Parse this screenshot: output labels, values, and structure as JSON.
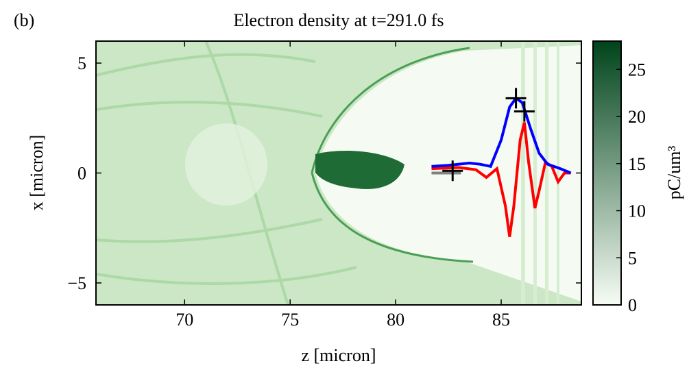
{
  "chart_data": {
    "type": "line",
    "title": "Electron density at t=291.0 fs",
    "panel_label": "(b)",
    "xlabel": "z [micron]",
    "ylabel": "x [micron]",
    "colorbar_label": "pC/um³",
    "xlim": [
      65.8,
      88.8
    ],
    "ylim": [
      -6,
      6
    ],
    "xticks": [
      70,
      75,
      80,
      85
    ],
    "yticks": [
      {
        "value": -5,
        "label": "−5"
      },
      0,
      5
    ],
    "clim": [
      0,
      28
    ],
    "cticks": [
      0,
      5,
      10,
      15,
      20,
      25
    ],
    "colormap": [
      "#f7fcf5",
      "#00441b"
    ],
    "series": [
      {
        "color": "#808080",
        "x": [
          81.7,
          83.1
        ],
        "values": [
          0.0,
          0.0
        ]
      },
      {
        "color": "#ff0000",
        "x": [
          81.7,
          83.0,
          83.8,
          84.3,
          84.8,
          85.2,
          85.4,
          85.6,
          85.9,
          86.1,
          86.3,
          86.6,
          86.8,
          87.1,
          87.4,
          87.7,
          88.0,
          88.3
        ],
        "values": [
          0.2,
          0.25,
          0.15,
          -0.2,
          0.2,
          -1.5,
          -2.9,
          -1.5,
          1.5,
          2.3,
          0.5,
          -1.6,
          -0.8,
          0.5,
          0.3,
          -0.4,
          0.0,
          0.0
        ]
      },
      {
        "color": "#0000ff",
        "x": [
          81.7,
          82.5,
          83.5,
          84.0,
          84.5,
          85.0,
          85.4,
          85.7,
          86.0,
          86.4,
          86.8,
          87.2,
          87.8,
          88.3
        ],
        "values": [
          0.3,
          0.35,
          0.45,
          0.4,
          0.3,
          1.5,
          3.0,
          3.4,
          3.2,
          2.0,
          0.9,
          0.4,
          0.2,
          0.0
        ]
      }
    ],
    "markers": {
      "color": "#000000",
      "x": [
        82.7,
        85.7,
        86.1
      ],
      "values": [
        0.1,
        3.4,
        2.8
      ]
    }
  }
}
